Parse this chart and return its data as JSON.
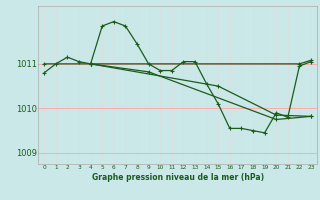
{
  "bg_color": "#cbe8e8",
  "grid_color": "#ffaaaa",
  "line_color": "#1a5c1a",
  "xlabel": "Graphe pression niveau de la mer (hPa)",
  "ylim": [
    1008.75,
    1012.3
  ],
  "xlim": [
    -0.5,
    23.5
  ],
  "yticks": [
    1009,
    1010,
    1011
  ],
  "xticks": [
    0,
    1,
    2,
    3,
    4,
    5,
    6,
    7,
    8,
    9,
    10,
    11,
    12,
    13,
    14,
    15,
    16,
    17,
    18,
    19,
    20,
    21,
    22,
    23
  ],
  "series1_x": [
    0,
    1,
    2,
    3,
    4,
    5,
    6,
    7,
    8,
    9,
    10,
    11,
    12,
    13,
    14,
    15,
    16,
    17,
    18,
    19,
    20,
    21,
    22,
    23
  ],
  "series1_y": [
    1010.8,
    1011.0,
    1011.15,
    1011.05,
    1011.0,
    1011.85,
    1011.95,
    1011.85,
    1011.45,
    1011.0,
    1010.85,
    1010.85,
    1011.05,
    1011.05,
    1010.55,
    1010.1,
    1009.55,
    1009.55,
    1009.5,
    1009.45,
    1009.9,
    1009.8,
    1010.95,
    1011.05
  ],
  "series2_x": [
    0,
    4,
    22,
    23
  ],
  "series2_y": [
    1011.0,
    1011.0,
    1011.0,
    1011.08
  ],
  "series3_x": [
    4,
    15,
    20,
    23
  ],
  "series3_y": [
    1011.0,
    1010.5,
    1009.85,
    1009.82
  ],
  "series4_x": [
    4,
    9,
    20,
    23
  ],
  "series4_y": [
    1011.0,
    1010.82,
    1009.75,
    1009.82
  ]
}
